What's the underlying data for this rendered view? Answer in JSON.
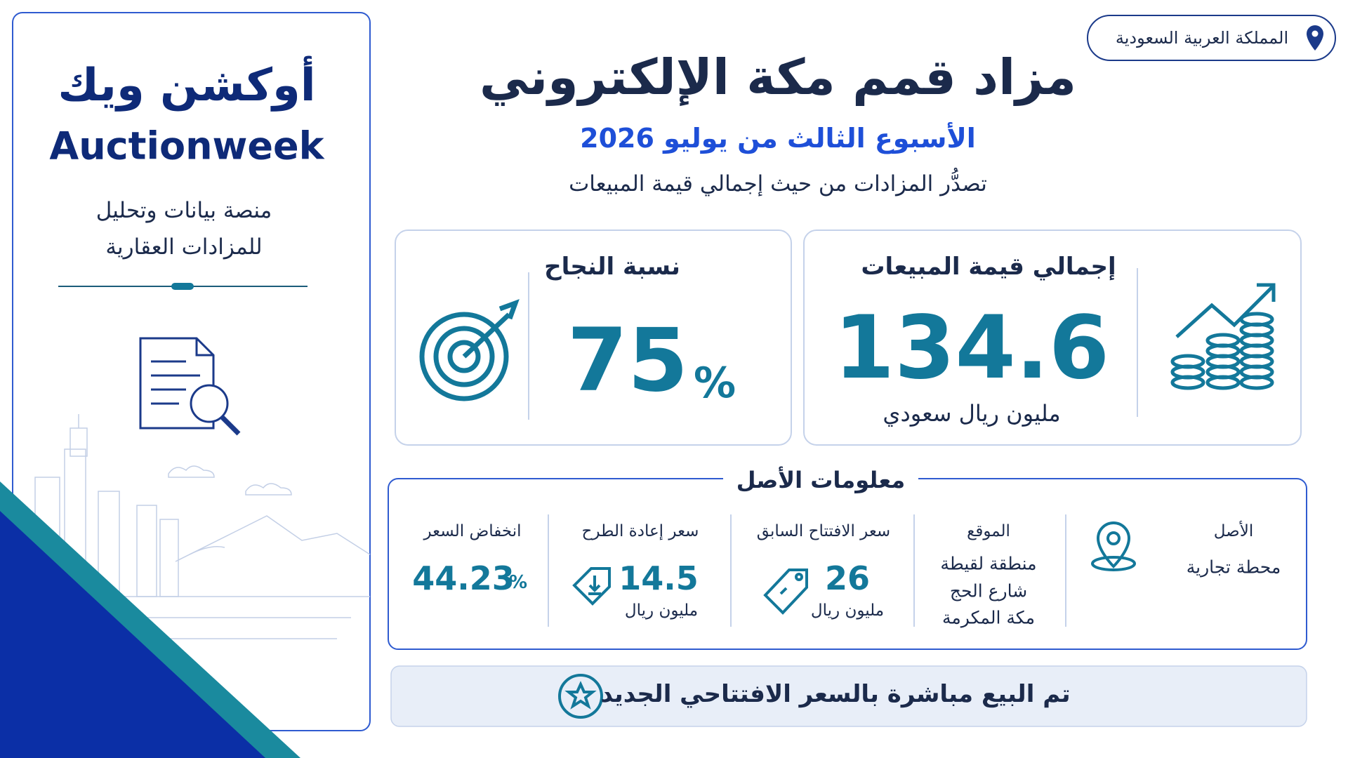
{
  "logo": {
    "arabic": "أوكشن ويك",
    "latin": "Auctionweek"
  },
  "tagline": [
    "منصة بيانات وتحليل",
    "للمزادات العقارية"
  ],
  "location_badge": "المملكة العربية السعودية",
  "header": {
    "title": "مزاد قمم مكة الإلكتروني",
    "subtitle": "الأسبوع الثالث من يوليو 2026",
    "note": "تصدُّر المزادات من حيث إجمالي قيمة المبيعات"
  },
  "kpis": [
    {
      "label": "إجمالي قيمة المبيعات",
      "value": 134.6,
      "unit": "مليون ريال سعودي"
    },
    {
      "label": "نسبة النجاح",
      "value": 75,
      "unit": "%"
    }
  ],
  "asset_info": {
    "title": "معلومات الأصل",
    "items": [
      {
        "label": "الأصل",
        "value": "محطة تجارية"
      },
      {
        "label": "الموقع",
        "value": [
          "منطقة لقيطة",
          "شارع الحج",
          "مكة المكرمة"
        ]
      },
      {
        "label": "سعر الافتتاح السابق",
        "value": 26,
        "unit": "مليون ريال"
      },
      {
        "label": "سعر إعادة الطرح",
        "value": 14.5,
        "unit": "مليون ريال"
      },
      {
        "label": "انخفاض السعر",
        "value": 44.23,
        "unit": "%"
      }
    ]
  },
  "footer": {
    "note": "تم البيع مباشرة بالسعر الافتتاحي الجديد"
  }
}
